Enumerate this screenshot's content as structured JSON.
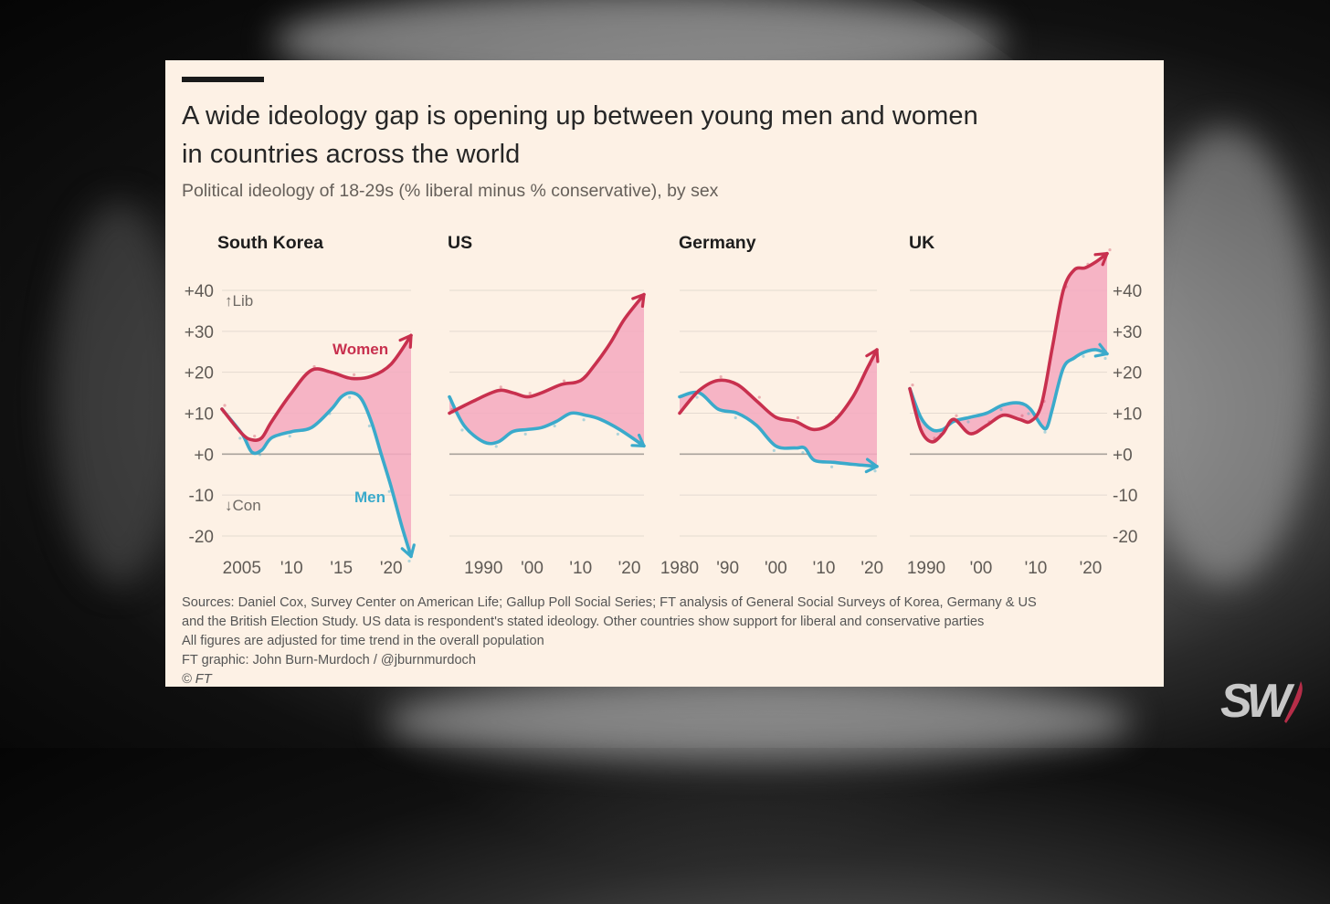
{
  "title_lines": [
    "A wide ideology gap is opening up between young men and women",
    "in countries across the world"
  ],
  "subtitle": "Political ideology of 18-29s (% liberal minus % conservative), by sex",
  "sources": [
    "Sources: Daniel Cox, Survey Center on American Life; Gallup Poll Social Series; FT analysis of General Social Surveys of Korea, Germany & US",
    "and the British Election Study. US data is respondent's stated ideology. Other countries show support for liberal and conservative parties",
    "All figures are adjusted for time trend in the overall population",
    "FT graphic: John Burn-Murdoch / @jburnmurdoch"
  ],
  "copyright": "© FT",
  "logo_text": "SW",
  "colors": {
    "women": "#c8304e",
    "men": "#3aaacb",
    "gap_fill": "#f4a9bf",
    "gridline": "#e4dad0",
    "zero_line": "#a9a29b",
    "card_bg": "#fdf1e5"
  },
  "chart_data": {
    "type": "line",
    "y_ticks": [
      "+40",
      "+30",
      "+20",
      "+10",
      "+0",
      "-10",
      "-20"
    ],
    "y_tick_values": [
      40,
      30,
      20,
      10,
      0,
      -10,
      -20
    ],
    "y_range": [
      -25,
      45
    ],
    "lib_label": "↑Lib",
    "con_label": "↓Con",
    "women_label": "Women",
    "men_label": "Men",
    "panels": [
      {
        "name": "South Korea",
        "x_range": [
          2003,
          2022
        ],
        "x_ticks": [
          {
            "v": 2005,
            "label": "2005"
          },
          {
            "v": 2010,
            "label": "'10"
          },
          {
            "v": 2015,
            "label": "'15"
          },
          {
            "v": 2020,
            "label": "'20"
          }
        ],
        "women": [
          [
            2003,
            11
          ],
          [
            2005,
            5
          ],
          [
            2006,
            3.5
          ],
          [
            2007,
            4
          ],
          [
            2008,
            8
          ],
          [
            2010,
            15
          ],
          [
            2012,
            20.5
          ],
          [
            2014,
            20
          ],
          [
            2016,
            18.5
          ],
          [
            2018,
            19
          ],
          [
            2020,
            22
          ],
          [
            2022,
            29
          ]
        ],
        "men": [
          [
            2003,
            11
          ],
          [
            2005,
            5
          ],
          [
            2006,
            0.5
          ],
          [
            2007,
            1
          ],
          [
            2008,
            4
          ],
          [
            2010,
            5.5
          ],
          [
            2012,
            6.5
          ],
          [
            2014,
            11
          ],
          [
            2015,
            14
          ],
          [
            2016,
            15
          ],
          [
            2017,
            13.5
          ],
          [
            2018,
            8
          ],
          [
            2019,
            0
          ],
          [
            2020,
            -8
          ],
          [
            2021,
            -17
          ],
          [
            2022,
            -25
          ]
        ]
      },
      {
        "name": "US",
        "x_range": [
          1983,
          2023
        ],
        "x_ticks": [
          {
            "v": 1990,
            "label": "1990"
          },
          {
            "v": 2000,
            "label": "'00"
          },
          {
            "v": 2010,
            "label": "'10"
          },
          {
            "v": 2020,
            "label": "'20"
          }
        ],
        "women": [
          [
            1983,
            10
          ],
          [
            1988,
            13
          ],
          [
            1993,
            15.5
          ],
          [
            1996,
            15
          ],
          [
            1999,
            14
          ],
          [
            2002,
            15
          ],
          [
            2006,
            17
          ],
          [
            2010,
            18
          ],
          [
            2013,
            22
          ],
          [
            2016,
            27
          ],
          [
            2019,
            33
          ],
          [
            2023,
            39
          ]
        ],
        "men": [
          [
            1983,
            14
          ],
          [
            1986,
            7
          ],
          [
            1990,
            3
          ],
          [
            1993,
            3
          ],
          [
            1996,
            5.5
          ],
          [
            1999,
            6
          ],
          [
            2002,
            6.5
          ],
          [
            2005,
            8
          ],
          [
            2008,
            10
          ],
          [
            2011,
            9.5
          ],
          [
            2014,
            8.5
          ],
          [
            2018,
            6
          ],
          [
            2023,
            2
          ]
        ]
      },
      {
        "name": "Germany",
        "x_range": [
          1980,
          2021
        ],
        "x_ticks": [
          {
            "v": 1980,
            "label": "1980"
          },
          {
            "v": 1990,
            "label": "'90"
          },
          {
            "v": 2000,
            "label": "'00"
          },
          {
            "v": 2010,
            "label": "'10"
          },
          {
            "v": 2020,
            "label": "'20"
          }
        ],
        "women": [
          [
            1980,
            10
          ],
          [
            1984,
            15.5
          ],
          [
            1988,
            18
          ],
          [
            1992,
            17
          ],
          [
            1996,
            13
          ],
          [
            2000,
            9
          ],
          [
            2004,
            8
          ],
          [
            2008,
            6
          ],
          [
            2012,
            8
          ],
          [
            2016,
            14
          ],
          [
            2019,
            21
          ],
          [
            2021,
            25.5
          ]
        ],
        "men": [
          [
            1980,
            14
          ],
          [
            1984,
            15
          ],
          [
            1988,
            11
          ],
          [
            1992,
            10
          ],
          [
            1996,
            7
          ],
          [
            2000,
            2
          ],
          [
            2004,
            1.5
          ],
          [
            2006,
            1.5
          ],
          [
            2008,
            -1.5
          ],
          [
            2012,
            -2
          ],
          [
            2016,
            -2.5
          ],
          [
            2021,
            -3
          ]
        ]
      },
      {
        "name": "UK",
        "x_range": [
          1987,
          2023
        ],
        "x_ticks": [
          {
            "v": 1990,
            "label": "1990"
          },
          {
            "v": 2000,
            "label": "'00"
          },
          {
            "v": 2010,
            "label": "'10"
          },
          {
            "v": 2020,
            "label": "'20"
          }
        ],
        "women": [
          [
            1987,
            16
          ],
          [
            1989,
            6
          ],
          [
            1991,
            3
          ],
          [
            1993,
            5
          ],
          [
            1995,
            8.5
          ],
          [
            1998,
            5
          ],
          [
            2001,
            7
          ],
          [
            2004,
            9.5
          ],
          [
            2007,
            8.5
          ],
          [
            2009,
            8
          ],
          [
            2011,
            12
          ],
          [
            2013,
            26
          ],
          [
            2015,
            40
          ],
          [
            2017,
            45
          ],
          [
            2019,
            45.5
          ],
          [
            2021,
            47
          ],
          [
            2023,
            49
          ]
        ],
        "men": [
          [
            1987,
            16
          ],
          [
            1989,
            9
          ],
          [
            1991,
            6
          ],
          [
            1993,
            6
          ],
          [
            1995,
            8
          ],
          [
            1998,
            9
          ],
          [
            2001,
            10
          ],
          [
            2004,
            12
          ],
          [
            2007,
            12.5
          ],
          [
            2009,
            11
          ],
          [
            2011,
            7
          ],
          [
            2012,
            6.5
          ],
          [
            2013,
            11
          ],
          [
            2015,
            21
          ],
          [
            2017,
            23.5
          ],
          [
            2019,
            25
          ],
          [
            2021,
            25.5
          ],
          [
            2023,
            24.5
          ]
        ]
      }
    ]
  }
}
